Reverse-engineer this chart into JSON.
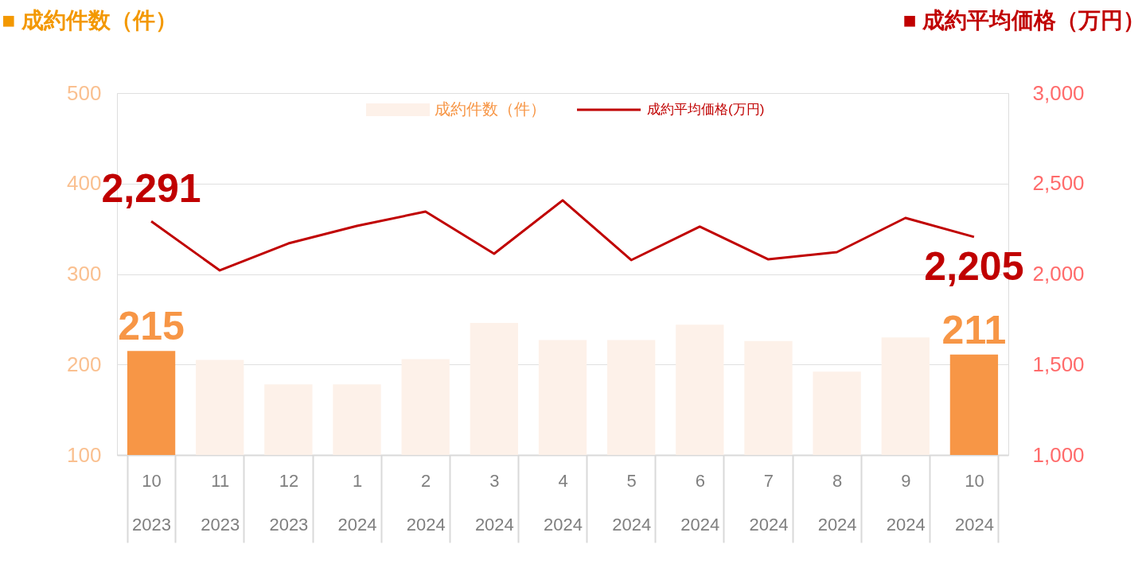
{
  "chart_data": {
    "type": "bar",
    "ylabel": "■ 成約件数（件）",
    "y2label": "■ 成約平均価格（万円）",
    "categories": [
      "10\n2023",
      "11\n2023",
      "12\n2023",
      "1\n2024",
      "2\n2024",
      "3\n2024",
      "4\n2024",
      "5\n2024",
      "6\n2024",
      "7\n2024",
      "8\n2024",
      "9\n2024",
      "10\n2024"
    ],
    "series": [
      {
        "name": "成約件数（件）",
        "color": "#fdf1e9",
        "colors": [
          "#f79646",
          "#fdf1e9",
          "#fdf1e9",
          "#fdf1e9",
          "#fdf1e9",
          "#fdf1e9",
          "#fdf1e9",
          "#fdf1e9",
          "#fdf1e9",
          "#fdf1e9",
          "#fdf1e9",
          "#fdf1e9",
          "#f79646"
        ],
        "values": [
          215,
          205,
          178,
          178,
          206,
          246,
          227,
          227,
          244,
          226,
          192,
          230,
          211
        ],
        "value_labels": [
          "215",
          null,
          null,
          null,
          null,
          null,
          null,
          null,
          null,
          null,
          null,
          null,
          "211"
        ]
      },
      {
        "name": "成約平均価格(万円)",
        "type": "line",
        "axis": "y2",
        "color": "#c00000",
        "values": [
          2291,
          2020,
          2169,
          2266,
          2345,
          2112,
          2407,
          2077,
          2262,
          2081,
          2121,
          2310,
          2205
        ],
        "value_labels": [
          "2,291",
          null,
          null,
          null,
          null,
          null,
          null,
          null,
          null,
          null,
          null,
          null,
          "2,205"
        ]
      }
    ],
    "ylim": [
      100,
      500
    ],
    "yticks": [
      100,
      200,
      300,
      400,
      500
    ],
    "y2lim": [
      1000,
      3000
    ],
    "y2ticks": [
      {
        "value": 1000,
        "label": "1,000"
      },
      {
        "value": 1500,
        "label": "1,500"
      },
      {
        "value": 2000,
        "label": "2,000"
      },
      {
        "value": 2500,
        "label": "2,500"
      },
      {
        "value": 3000,
        "label": "3,000"
      }
    ],
    "grid": "y",
    "legend": "top",
    "marker": "none",
    "line_style": "solid"
  }
}
